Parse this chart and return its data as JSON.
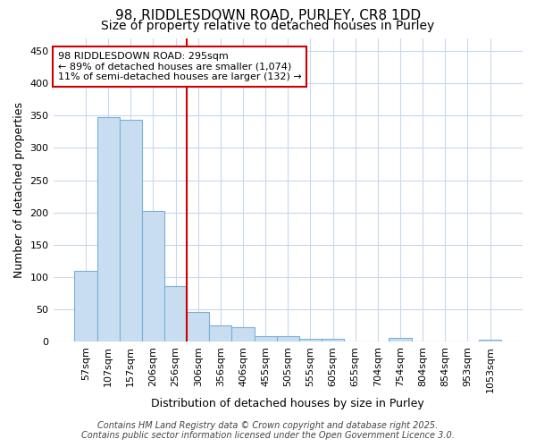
{
  "title_line1": "98, RIDDLESDOWN ROAD, PURLEY, CR8 1DD",
  "title_line2": "Size of property relative to detached houses in Purley",
  "xlabel": "Distribution of detached houses by size in Purley",
  "ylabel": "Number of detached properties",
  "categories": [
    "57sqm",
    "107sqm",
    "157sqm",
    "206sqm",
    "256sqm",
    "306sqm",
    "356sqm",
    "406sqm",
    "455sqm",
    "505sqm",
    "555sqm",
    "605sqm",
    "655sqm",
    "704sqm",
    "754sqm",
    "804sqm",
    "854sqm",
    "953sqm",
    "1053sqm"
  ],
  "values": [
    110,
    348,
    343,
    203,
    86,
    46,
    25,
    22,
    9,
    9,
    5,
    5,
    1,
    1,
    6,
    1,
    1,
    1,
    3
  ],
  "bar_color": "#c8ddf0",
  "bar_edge_color": "#7ab0d8",
  "background_color": "#ffffff",
  "plot_bg_color": "#ffffff",
  "grid_color": "#c8d8f0",
  "vline_color": "#cc0000",
  "annotation_text": "98 RIDDLESDOWN ROAD: 295sqm\n← 89% of detached houses are smaller (1,074)\n11% of semi-detached houses are larger (132) →",
  "annotation_box_color": "#ffffff",
  "annotation_box_edge": "#cc0000",
  "ylim": [
    0,
    470
  ],
  "yticks": [
    0,
    50,
    100,
    150,
    200,
    250,
    300,
    350,
    400,
    450
  ],
  "footer": "Contains HM Land Registry data © Crown copyright and database right 2025.\nContains public sector information licensed under the Open Government Licence 3.0.",
  "title_fontsize": 11,
  "subtitle_fontsize": 10,
  "tick_fontsize": 8,
  "label_fontsize": 9,
  "footer_fontsize": 7
}
